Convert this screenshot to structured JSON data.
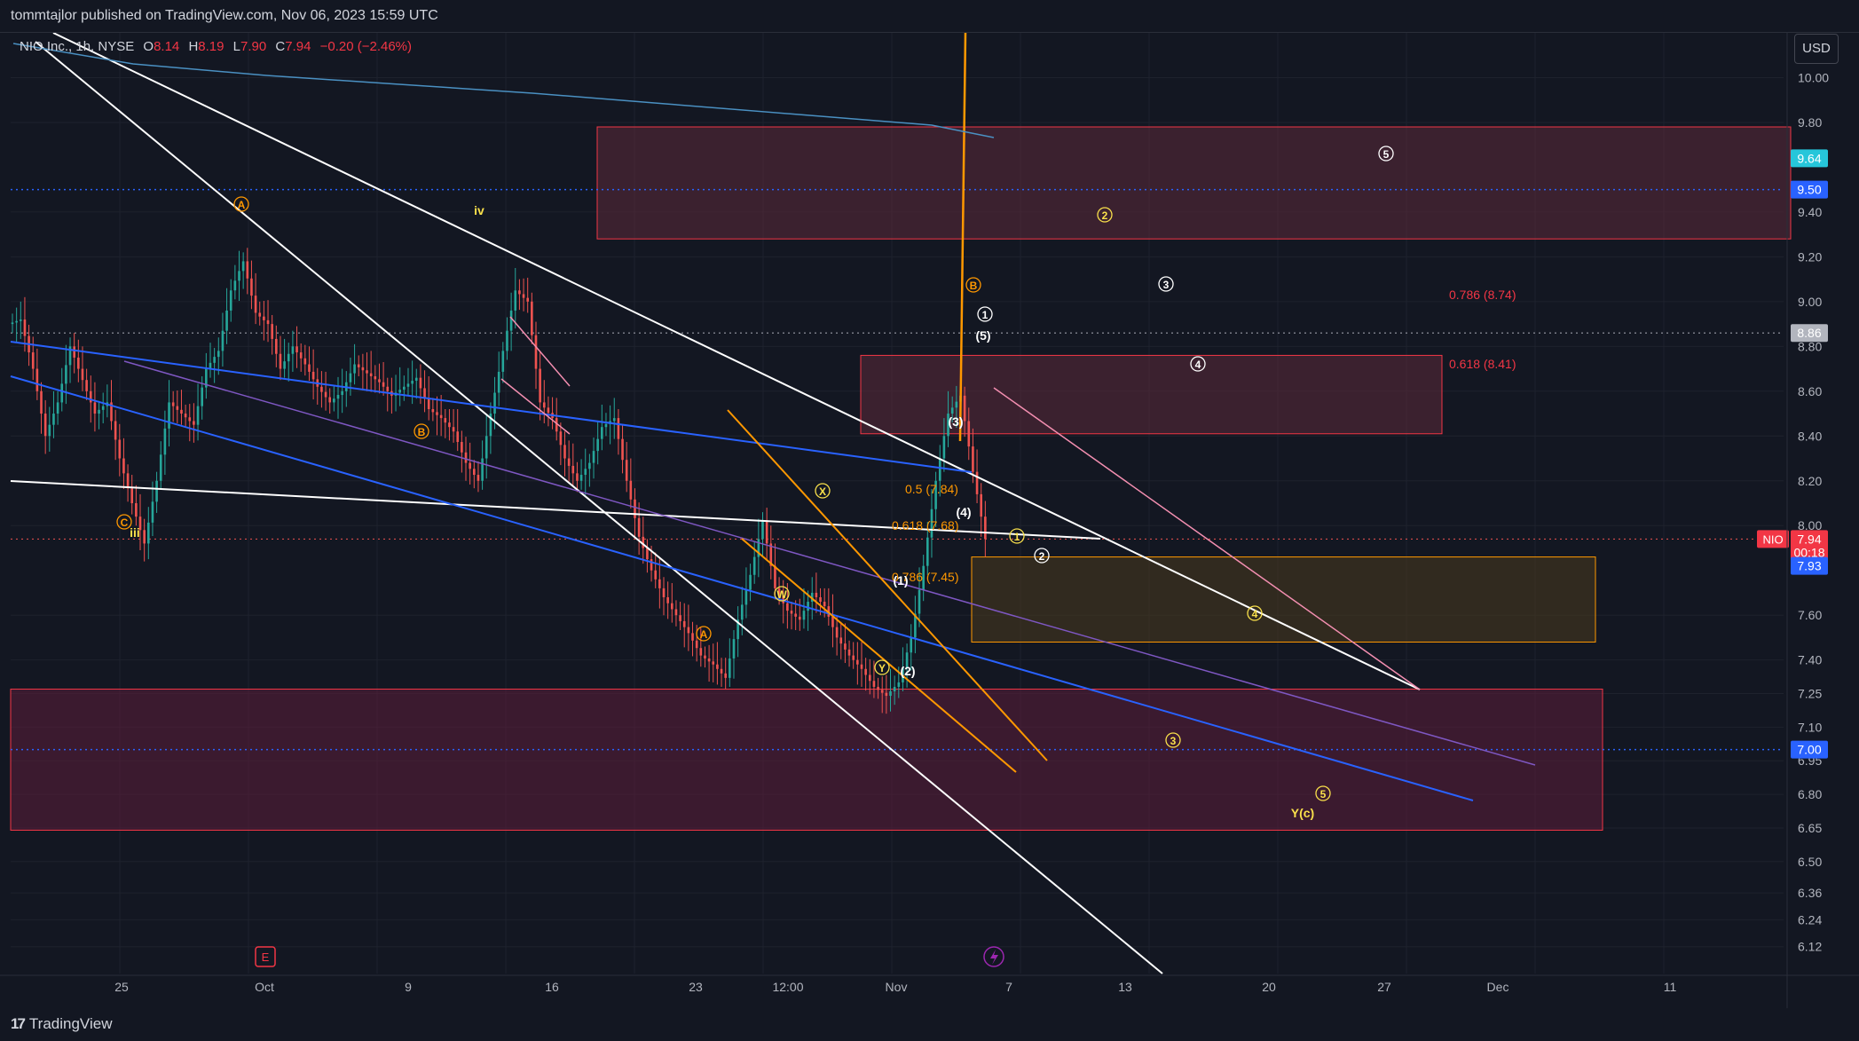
{
  "header": {
    "published_line": "tommtajlor published on TradingView.com, Nov 06, 2023 15:59 UTC"
  },
  "legend": {
    "symbol": "NIO Inc., 1h, NYSE",
    "open_label": "O",
    "open_value": "8.14",
    "high_label": "H",
    "high_value": "8.19",
    "low_label": "L",
    "low_value": "7.90",
    "close_label": "C",
    "close_value": "7.94",
    "change": "−0.20 (−2.46%)"
  },
  "currency_button": "USD",
  "footer": {
    "brand": "TradingView"
  },
  "colors": {
    "background": "#131722",
    "up": "#26a69a",
    "down": "#ef5350",
    "white_line": "#ffffff",
    "blue_line": "#2962ff",
    "orange_line": "#ff9800",
    "purple_line": "#7e57c2",
    "pink_line": "#f48fb1",
    "price_badge_red": "#f23645",
    "price_badge_blue": "#2962ff",
    "resistance_zone": "#5d2a3a",
    "support_zone": "#5c1d3a",
    "golden_zone": "#4a3a1e"
  },
  "chart_data": {
    "type": "candlestick",
    "symbol": "NIO",
    "interval": "1h",
    "exchange": "NYSE",
    "ylim": [
      6.0,
      10.2
    ],
    "price_ticks": [
      "10.00",
      "9.80",
      "9.40",
      "9.20",
      "9.00",
      "8.80",
      "8.60",
      "8.40",
      "8.20",
      "8.00",
      "7.60",
      "7.40",
      "7.25",
      "7.10",
      "6.95",
      "6.80",
      "6.65",
      "6.50",
      "6.36",
      "6.24",
      "6.12"
    ],
    "time_ticks": [
      "25",
      "Oct",
      "9",
      "16",
      "23",
      "12:00",
      "Nov",
      "7",
      "13",
      "20",
      "27",
      "Dec",
      "11"
    ],
    "price_badges": [
      {
        "label": "9.64",
        "value": 9.64,
        "color": "#26c6da"
      },
      {
        "label": "9.50",
        "value": 9.5,
        "color": "#2962ff"
      },
      {
        "label": "8.86",
        "value": 8.86,
        "color": "#b2b5be"
      },
      {
        "label": "7.94",
        "value": 7.94,
        "color": "#f23645"
      },
      {
        "label": "00:18",
        "value": 7.88,
        "color": "#f23645"
      },
      {
        "label": "7.93",
        "value": 7.82,
        "color": "#2962ff"
      },
      {
        "label": "7.00",
        "value": 7.0,
        "color": "#2962ff"
      }
    ],
    "symbol_badge": "NIO",
    "close_candles": [
      8.92,
      8.7,
      8.4,
      8.55,
      8.8,
      8.65,
      8.5,
      8.55,
      8.3,
      8.1,
      7.92,
      8.2,
      8.55,
      8.5,
      8.45,
      8.7,
      8.78,
      9.05,
      9.18,
      8.95,
      8.9,
      8.7,
      8.8,
      8.72,
      8.62,
      8.55,
      8.6,
      8.72,
      8.68,
      8.64,
      8.58,
      8.62,
      8.66,
      8.52,
      8.48,
      8.42,
      8.28,
      8.2,
      8.5,
      8.78,
      9.05,
      9.0,
      8.55,
      8.48,
      8.3,
      8.2,
      8.28,
      8.44,
      8.48,
      8.2,
      7.95,
      7.8,
      7.68,
      7.6,
      7.52,
      7.42,
      7.38,
      7.32,
      7.58,
      7.78,
      8.02,
      7.72,
      7.62,
      7.58,
      7.7,
      7.64,
      7.5,
      7.42,
      7.36,
      7.28,
      7.24,
      7.3,
      7.5,
      7.82,
      8.2,
      8.5,
      8.58,
      8.24,
      7.94
    ],
    "fib_labels": [
      {
        "text": "0.786 (8.74)",
        "value": 8.74
      },
      {
        "text": "0.618 (8.41)",
        "value": 8.41
      },
      {
        "text": "0.5 (7.84)",
        "value": 7.84
      },
      {
        "text": "0.618 (7.68)",
        "value": 7.68
      },
      {
        "text": "0.786 (7.45)",
        "value": 7.45
      }
    ],
    "wave_labels": [
      "A",
      "B",
      "iv",
      "iii",
      "C",
      "B",
      "A",
      "W",
      "X",
      "Y",
      "(1)",
      "(2)",
      "(3)",
      "(4)",
      "(5)",
      "1",
      "2",
      "3",
      "4",
      "5",
      "1",
      "2",
      "3",
      "4",
      "5",
      "1",
      "2",
      "3",
      "4",
      "5",
      "Y(c)",
      "B"
    ]
  }
}
